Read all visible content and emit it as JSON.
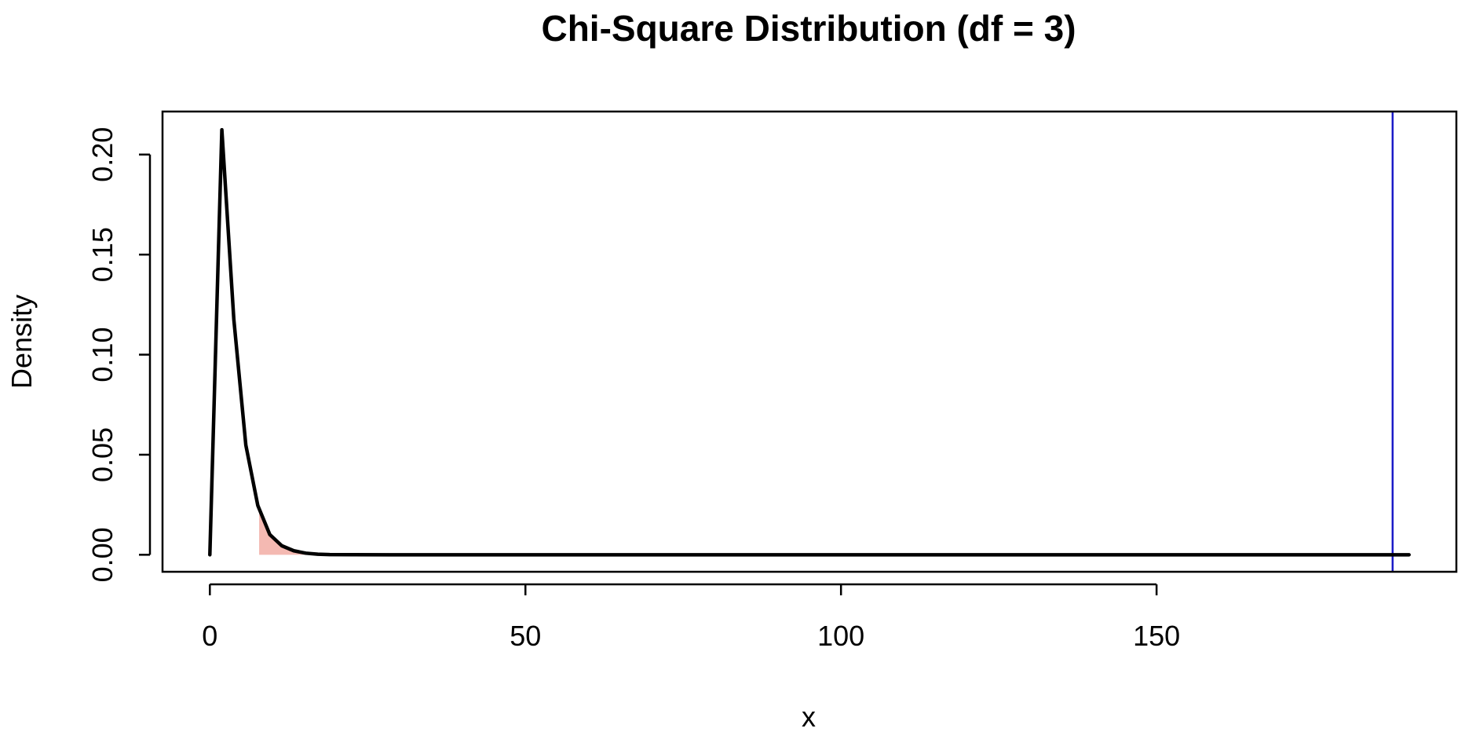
{
  "chart_data": {
    "type": "line",
    "title": "Chi-Square Distribution (df = 3)",
    "xlabel": "x",
    "ylabel": "Density",
    "xlim": [
      -7.5,
      197.5
    ],
    "ylim": [
      -0.0085,
      0.2215
    ],
    "x_ticks": [
      0,
      50,
      100,
      150
    ],
    "x_tick_labels": [
      "0",
      "50",
      "100",
      "150"
    ],
    "y_ticks": [
      0.0,
      0.05,
      0.1,
      0.15,
      0.2
    ],
    "y_tick_labels": [
      "0.00",
      "0.05",
      "0.10",
      "0.15",
      "0.20"
    ],
    "grid": false,
    "legend": "none",
    "series": [
      {
        "x": [
          0,
          1.9,
          3.8,
          5.7,
          7.6,
          9.5,
          11.4,
          13.3,
          15.2,
          17.1,
          19,
          22.8,
          28.5,
          38,
          57,
          95,
          133,
          171,
          190
        ],
        "y": [
          0,
          0.2124,
          0.1176,
          0.0548,
          0.0246,
          0.0101,
          0.0045,
          0.002,
          0.0008,
          0.0003,
          0.0001,
          2e-05,
          1e-06,
          0,
          0,
          0,
          0,
          0,
          0
        ],
        "color": "#000000"
      }
    ],
    "shaded_region": {
      "x_from": 7.81,
      "x_to": 190,
      "color": "#f4b9b2"
    },
    "vertical_line": {
      "x": 187.4,
      "color": "#1a1ac8"
    }
  }
}
